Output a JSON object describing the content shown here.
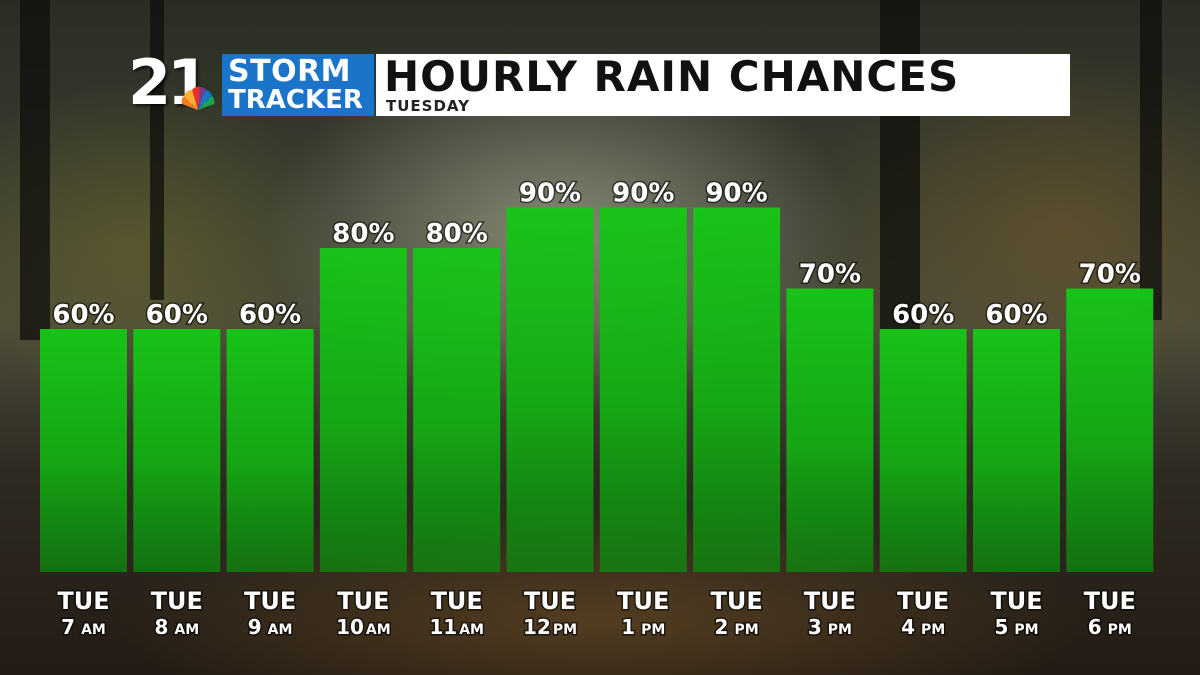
{
  "header": {
    "logo_number": "21",
    "logo_line1": "STORM",
    "logo_line2": "TRACKER",
    "title": "HOURLY RAIN CHANCES",
    "subtitle": "TUESDAY"
  },
  "colors": {
    "bar_top": "#17c617",
    "bar_bottom": "#0d8a0d",
    "logo_blue": "#1a74c9"
  },
  "chart_data": {
    "type": "bar",
    "categories": [
      {
        "day": "TUE",
        "hour": "7",
        "ampm": "AM"
      },
      {
        "day": "TUE",
        "hour": "8",
        "ampm": "AM"
      },
      {
        "day": "TUE",
        "hour": "9",
        "ampm": "AM"
      },
      {
        "day": "TUE",
        "hour": "10",
        "ampm": "AM"
      },
      {
        "day": "TUE",
        "hour": "11",
        "ampm": "AM"
      },
      {
        "day": "TUE",
        "hour": "12",
        "ampm": "PM"
      },
      {
        "day": "TUE",
        "hour": "1",
        "ampm": "PM"
      },
      {
        "day": "TUE",
        "hour": "2",
        "ampm": "PM"
      },
      {
        "day": "TUE",
        "hour": "3",
        "ampm": "PM"
      },
      {
        "day": "TUE",
        "hour": "4",
        "ampm": "PM"
      },
      {
        "day": "TUE",
        "hour": "5",
        "ampm": "PM"
      },
      {
        "day": "TUE",
        "hour": "6",
        "ampm": "PM"
      }
    ],
    "values": [
      60,
      60,
      60,
      80,
      80,
      90,
      90,
      90,
      70,
      60,
      60,
      70
    ],
    "value_labels": [
      "60%",
      "60%",
      "60%",
      "80%",
      "80%",
      "90%",
      "90%",
      "90%",
      "70%",
      "60%",
      "60%",
      "70%"
    ],
    "title": "HOURLY RAIN CHANCES",
    "subtitle": "TUESDAY",
    "xlabel": "",
    "ylabel": "",
    "ylim": [
      0,
      100
    ],
    "grid": false,
    "legend": "none"
  }
}
